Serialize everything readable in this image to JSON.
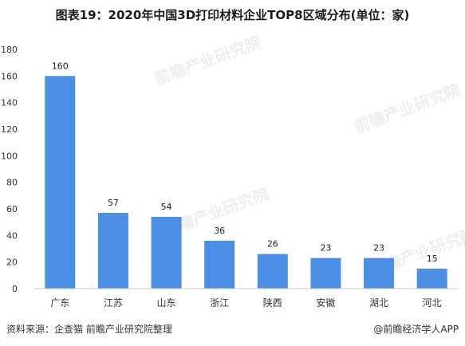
{
  "title": "图表19：2020年中国3D打印材料企业TOP8区域分布(单位：家)",
  "footer": {
    "source": "资料来源：企查猫 前瞻产业研究院整理",
    "brand": "@前瞻经济学人APP"
  },
  "watermark": "前瞻产业研究院",
  "chart_data": {
    "type": "bar",
    "categories": [
      "广东",
      "江苏",
      "山东",
      "浙江",
      "陕西",
      "安徽",
      "湖北",
      "河北"
    ],
    "values": [
      160,
      57,
      54,
      36,
      26,
      23,
      23,
      15
    ],
    "yticks": [
      0,
      20,
      40,
      60,
      80,
      100,
      120,
      140,
      160,
      180
    ],
    "ylim": [
      0,
      180
    ],
    "bar_color": "#4a8ee6",
    "grid": false,
    "xlabel": "",
    "ylabel": ""
  }
}
